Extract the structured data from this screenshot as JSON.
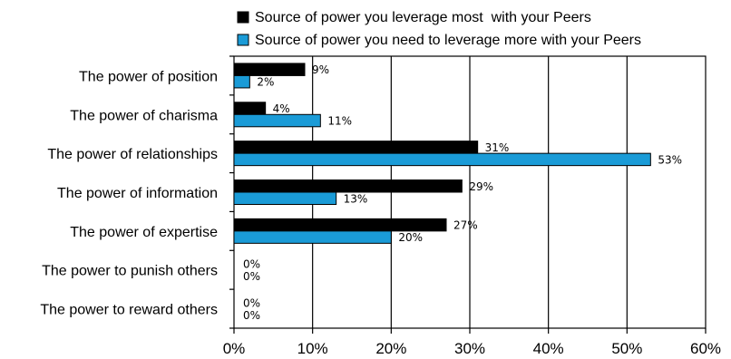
{
  "chart_data": {
    "type": "bar",
    "orientation": "horizontal",
    "categories": [
      "The power of position",
      "The power of charisma",
      "The power of relationships",
      "The power of information",
      "The power of expertise",
      "The power to punish others",
      "The power to reward others"
    ],
    "series": [
      {
        "name": "Source of power you leverage most  with your Peers",
        "values": [
          9,
          4,
          31,
          29,
          27,
          0,
          0
        ],
        "labels": [
          "9%",
          "4%",
          "31%",
          "29%",
          "27%",
          "0%",
          "0%"
        ],
        "color": "#000000"
      },
      {
        "name": "Source of power you need to leverage more with your Peers",
        "values": [
          2,
          11,
          53,
          13,
          20,
          0,
          0
        ],
        "labels": [
          "2%",
          "11%",
          "53%",
          "13%",
          "20%",
          "0%",
          "0%"
        ],
        "color": "#1a9bd7"
      }
    ],
    "xlim": [
      0,
      60
    ],
    "xticks": [
      "0%",
      "10%",
      "20%",
      "30%",
      "40%",
      "50%",
      "60%"
    ],
    "grid": true,
    "legend_position": "top",
    "title": "",
    "xlabel": "",
    "ylabel": ""
  }
}
